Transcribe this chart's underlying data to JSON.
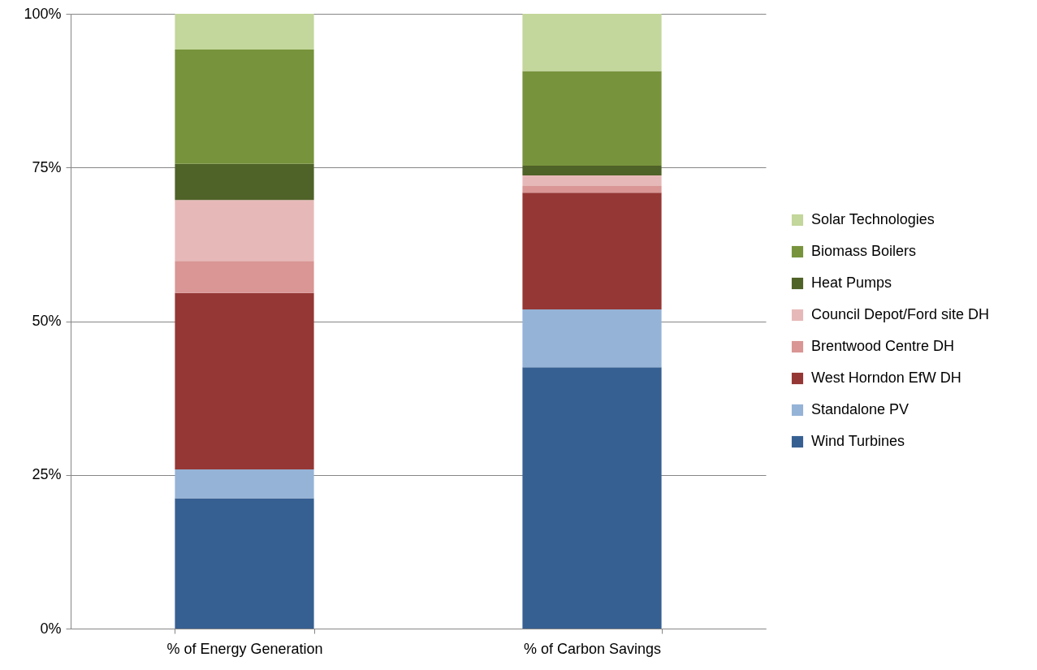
{
  "chart_data": {
    "type": "bar",
    "stacked": true,
    "categories": [
      "% of Energy Generation",
      "% of Carbon Savings"
    ],
    "series": [
      {
        "name": "Wind Turbines",
        "color": "#376092",
        "values": [
          21.2,
          42.5
        ]
      },
      {
        "name": "Standalone PV",
        "color": "#95b3d7",
        "values": [
          4.7,
          9.4
        ]
      },
      {
        "name": "West Horndon EfW DH",
        "color": "#953735",
        "values": [
          28.7,
          19.0
        ]
      },
      {
        "name": "Brentwood Centre DH",
        "color": "#d99694",
        "values": [
          5.2,
          1.1
        ]
      },
      {
        "name": "Council Depot/Ford site DH",
        "color": "#e6b9b8",
        "values": [
          9.9,
          1.7
        ]
      },
      {
        "name": "Heat Pumps",
        "color": "#4f6228",
        "values": [
          5.9,
          1.6
        ]
      },
      {
        "name": "Biomass Boilers",
        "color": "#77933c",
        "values": [
          18.6,
          15.4
        ]
      },
      {
        "name": "Solar Technologies",
        "color": "#c3d69b",
        "values": [
          5.8,
          9.3
        ]
      }
    ],
    "ylim": [
      0,
      100
    ],
    "yticks": [
      {
        "value": 0,
        "label": "0%"
      },
      {
        "value": 25,
        "label": "25%"
      },
      {
        "value": 50,
        "label": "50%"
      },
      {
        "value": 75,
        "label": "75%"
      },
      {
        "value": 100,
        "label": "100%"
      }
    ],
    "grid": "y",
    "legend": "right"
  }
}
